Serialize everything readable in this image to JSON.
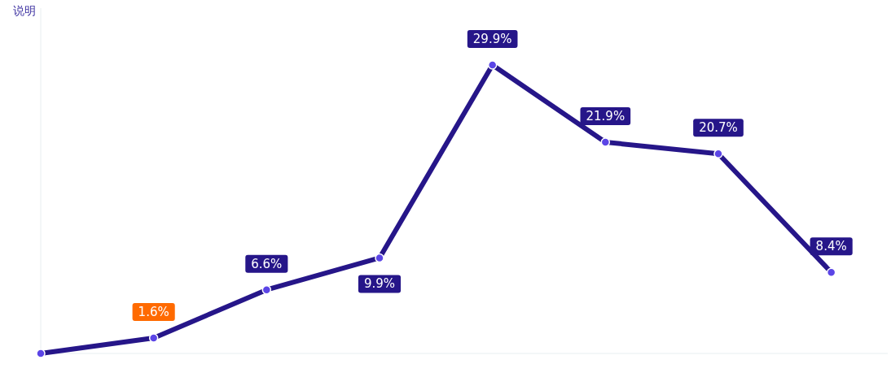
{
  "chart_data": {
    "type": "line",
    "ylabel": "说明",
    "categories": [
      null,
      null,
      null,
      null,
      null,
      null,
      null,
      null
    ],
    "series": [
      {
        "color": "#261689",
        "values": [
          0,
          1.6,
          6.6,
          9.9,
          29.9,
          21.9,
          20.7,
          8.4
        ],
        "value_labels": [
          null,
          "1.6%",
          "6.6%",
          "9.9%",
          "29.9%",
          "21.9%",
          "20.7%",
          "8.4%"
        ],
        "colors": [
          null,
          "#ff6a00",
          "#261689",
          "#261689",
          "#261689",
          "#261689",
          "#261689",
          "#261689"
        ]
      }
    ],
    "marker": "circle",
    "line_style": "solid"
  }
}
